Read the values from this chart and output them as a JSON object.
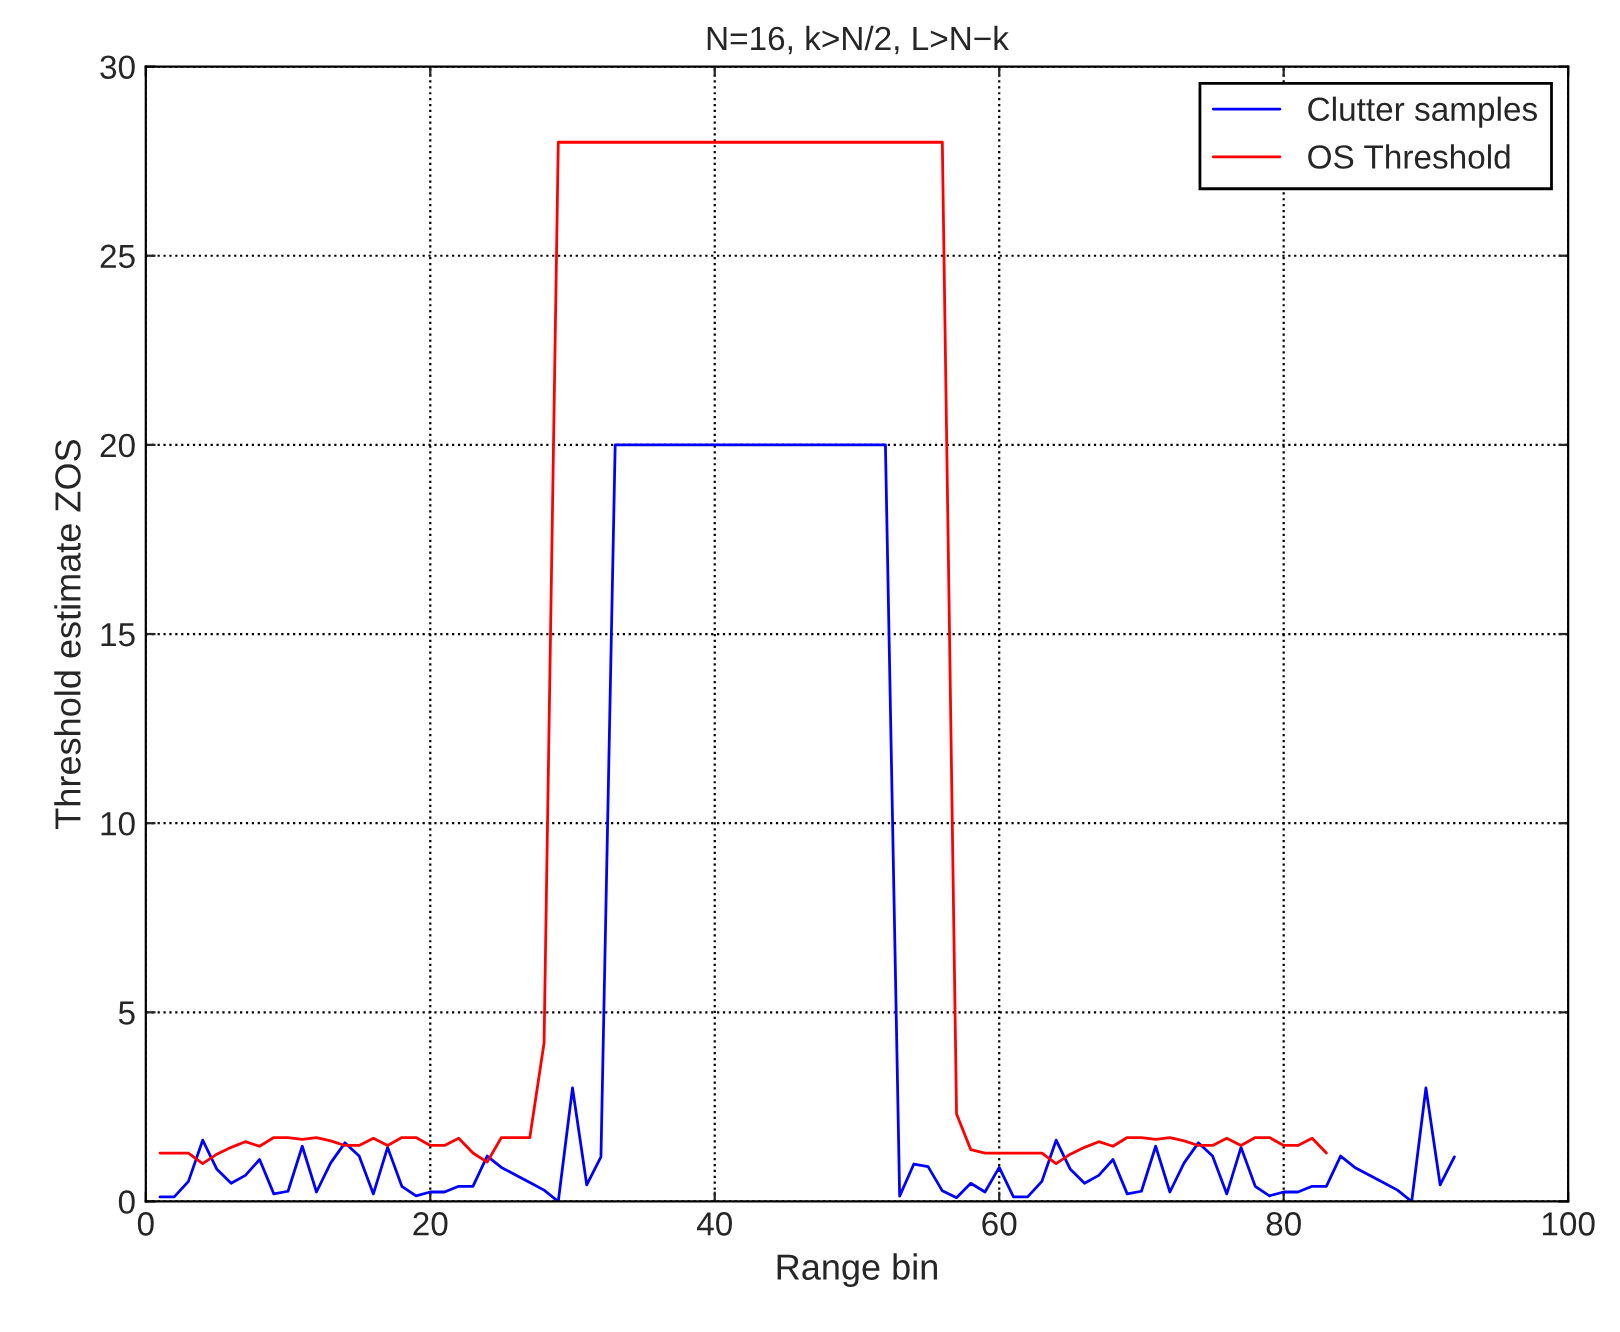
{
  "chart_data": {
    "type": "line",
    "title": "N=16, k>N/2, L>N−k",
    "xlabel": "Range bin",
    "ylabel": "Threshold estimate ZOS",
    "series": [
      {
        "name": "Clutter samples",
        "color": "#0000ff",
        "x": [
          1,
          2,
          3,
          4,
          5,
          6,
          7,
          8,
          9,
          10,
          11,
          12,
          13,
          14,
          15,
          16,
          17,
          18,
          19,
          20,
          21,
          22,
          23,
          24,
          25,
          26,
          27,
          28,
          29,
          30,
          31,
          32,
          33,
          34,
          35,
          36,
          37,
          38,
          39,
          40,
          41,
          42,
          43,
          44,
          45,
          46,
          47,
          48,
          49,
          50,
          51,
          52,
          53,
          54,
          55,
          56,
          57,
          58,
          59,
          60,
          61,
          62,
          63,
          64,
          65,
          66,
          67,
          68,
          69,
          70,
          71,
          72,
          73,
          74,
          75,
          76,
          77,
          78,
          79,
          80,
          81,
          82,
          83,
          84,
          85,
          86,
          87,
          88,
          89,
          90,
          91,
          92
        ],
        "values": [
          0.12,
          0.12,
          0.53,
          1.62,
          0.85,
          0.48,
          0.69,
          1.11,
          0.2,
          0.27,
          1.46,
          0.25,
          1.02,
          1.55,
          1.2,
          0.2,
          1.43,
          0.4,
          0.15,
          0.25,
          0.25,
          0.4,
          0.4,
          1.2,
          0.9,
          0.7,
          0.5,
          0.3,
          0.0,
          3.0,
          0.44,
          1.18,
          20,
          20,
          20,
          20,
          20,
          20,
          20,
          20,
          20,
          20,
          20,
          20,
          20,
          20,
          20,
          20,
          20,
          20,
          20,
          20,
          0.14,
          0.99,
          0.92,
          0.28,
          0.1,
          0.48,
          0.25,
          0.9,
          0.12,
          0.12,
          0.53,
          1.62,
          0.85,
          0.48,
          0.69,
          1.11,
          0.2,
          0.27,
          1.46,
          0.25,
          1.02,
          1.55,
          1.2,
          0.2,
          1.43,
          0.4,
          0.15,
          0.25,
          0.25,
          0.4,
          0.4,
          1.2,
          0.9,
          0.7,
          0.5,
          0.3,
          0.0,
          3.0,
          0.44,
          1.18
        ]
      },
      {
        "name": "OS Threshold",
        "color": "#ff0000",
        "x": [
          1,
          2,
          3,
          4,
          5,
          6,
          7,
          8,
          9,
          10,
          11,
          12,
          13,
          14,
          15,
          16,
          17,
          18,
          19,
          20,
          21,
          22,
          23,
          24,
          25,
          26,
          27,
          28,
          29,
          30,
          31,
          32,
          33,
          34,
          35,
          36,
          37,
          38,
          39,
          40,
          41,
          42,
          43,
          44,
          45,
          46,
          47,
          48,
          49,
          50,
          51,
          52,
          53,
          54,
          55,
          56,
          57,
          58,
          59,
          60,
          61,
          62,
          63,
          64,
          65,
          66,
          67,
          68,
          69,
          70,
          71,
          72,
          73,
          74,
          75,
          76,
          77,
          78,
          79,
          80,
          81,
          82,
          83
        ],
        "values": [
          1.28,
          1.28,
          1.28,
          1.0,
          1.25,
          1.43,
          1.58,
          1.46,
          1.69,
          1.69,
          1.64,
          1.69,
          1.6,
          1.48,
          1.48,
          1.67,
          1.48,
          1.69,
          1.69,
          1.48,
          1.48,
          1.67,
          1.28,
          1.04,
          1.69,
          1.69,
          1.69,
          4.19,
          28,
          28,
          28,
          28,
          28,
          28,
          28,
          28,
          28,
          28,
          28,
          28,
          28,
          28,
          28,
          28,
          28,
          28,
          28,
          28,
          28,
          28,
          28,
          28,
          28,
          28,
          28,
          28,
          2.31,
          1.37,
          1.28,
          1.28,
          1.28,
          1.28,
          1.28,
          1.0,
          1.25,
          1.43,
          1.58,
          1.46,
          1.69,
          1.69,
          1.64,
          1.69,
          1.6,
          1.48,
          1.48,
          1.67,
          1.48,
          1.69,
          1.69,
          1.48,
          1.48,
          1.67,
          1.28
        ]
      }
    ],
    "xlim": [
      0,
      100
    ],
    "xticks": [
      0,
      20,
      40,
      60,
      80,
      100
    ],
    "ylim": [
      0,
      30
    ],
    "yticks": [
      0,
      5,
      10,
      15,
      20,
      25,
      30
    ],
    "grid": true,
    "legend": "top right",
    "marker": "none",
    "line_style": "solid"
  }
}
